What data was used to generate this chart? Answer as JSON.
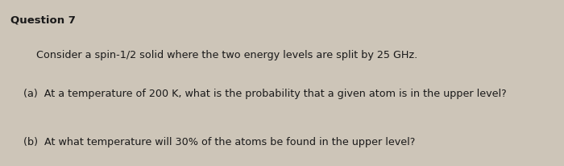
{
  "title": "Question 7",
  "line1": "        Consider a spin-1/2 solid where the two energy levels are split by 25 GHz.",
  "line2": "    (a)  At a temperature of 200 K, what is the probability that a given atom is in the upper level?",
  "line3": "    (b)  At what temperature will 30% of the atoms be found in the upper level?",
  "bg_color": "#cdc5b8",
  "text_color": "#1a1a1a",
  "title_fontsize": 9.5,
  "body_fontsize": 9.2,
  "fig_width": 7.0,
  "fig_height": 2.07
}
